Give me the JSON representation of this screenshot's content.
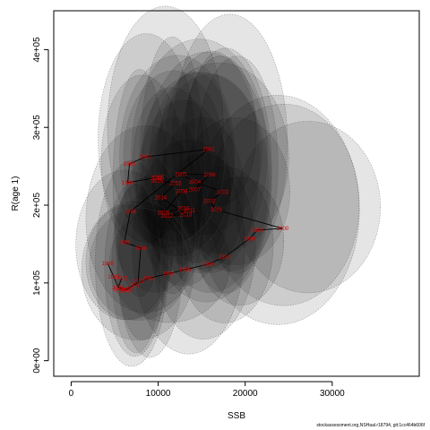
{
  "chart_data": {
    "type": "scatter",
    "title": "",
    "xlabel": "SSB",
    "ylabel": "R(age 1)",
    "xlim": [
      -2000,
      40000
    ],
    "ylim": [
      -20000,
      450000
    ],
    "x_ticks": [
      0,
      10000,
      20000,
      30000
    ],
    "x_tick_labels": [
      "0",
      "10000",
      "20000",
      "30000"
    ],
    "y_ticks": [
      0,
      100000,
      200000,
      300000,
      400000
    ],
    "y_tick_labels": [
      "0e+00",
      "1e+05",
      "2e+05",
      "3e+05",
      "4e+05"
    ],
    "grid": false,
    "points": [
      {
        "year": "1981",
        "ssb": 15800,
        "rec": 272000
      },
      {
        "year": "1982",
        "ssb": 8500,
        "rec": 262000
      },
      {
        "year": "1983",
        "ssb": 6700,
        "rec": 253000
      },
      {
        "year": "1984",
        "ssb": 6500,
        "rec": 229000
      },
      {
        "year": "1985",
        "ssb": 10000,
        "rec": 236000
      },
      {
        "year": "1986",
        "ssb": 6800,
        "rec": 192000
      },
      {
        "year": "1987",
        "ssb": 6100,
        "rec": 152000
      },
      {
        "year": "1988",
        "ssb": 4200,
        "rec": 125000
      },
      {
        "year": "1989",
        "ssb": 4900,
        "rec": 108000
      },
      {
        "year": "1990",
        "ssb": 5500,
        "rec": 92000
      },
      {
        "year": "1991",
        "ssb": 6100,
        "rec": 90000
      },
      {
        "year": "1992",
        "ssb": 7200,
        "rec": 97000
      },
      {
        "year": "1993",
        "ssb": 8900,
        "rec": 106000
      },
      {
        "year": "1994",
        "ssb": 11200,
        "rec": 112000
      },
      {
        "year": "1995",
        "ssb": 13100,
        "rec": 117000
      },
      {
        "year": "1996",
        "ssb": 15700,
        "rec": 124000
      },
      {
        "year": "1997",
        "ssb": 17600,
        "rec": 133000
      },
      {
        "year": "1998",
        "ssb": 20500,
        "rec": 157000
      },
      {
        "year": "1999",
        "ssb": 21400,
        "rec": 168000
      },
      {
        "year": "2000",
        "ssb": 24300,
        "rec": 170000
      },
      {
        "year": "2001",
        "ssb": 16700,
        "rec": 194000
      },
      {
        "year": "2002",
        "ssb": 15900,
        "rec": 205000
      },
      {
        "year": "2003",
        "ssb": 17400,
        "rec": 217000
      },
      {
        "year": "2004",
        "ssb": 14200,
        "rec": 230000
      },
      {
        "year": "2005",
        "ssb": 12600,
        "rec": 240000
      },
      {
        "year": "2006",
        "ssb": 15900,
        "rec": 239000
      },
      {
        "year": "2007",
        "ssb": 14200,
        "rec": 220000
      },
      {
        "year": "2008",
        "ssb": 12700,
        "rec": 218000
      },
      {
        "year": "2009",
        "ssb": 10600,
        "rec": 190000
      },
      {
        "year": "2010",
        "ssb": 12900,
        "rec": 196000
      },
      {
        "year": "2011",
        "ssb": 13600,
        "rec": 193000
      },
      {
        "year": "2012",
        "ssb": 11000,
        "rec": 186000
      },
      {
        "year": "2013",
        "ssb": 13200,
        "rec": 188000
      },
      {
        "year": "2014",
        "ssb": 10300,
        "rec": 210000
      },
      {
        "year": "2015",
        "ssb": 12000,
        "rec": 228000
      },
      {
        "year": "2016",
        "ssb": 9900,
        "rec": 231000
      },
      {
        "year": "2017",
        "ssb": 9800,
        "rec": 235000
      },
      {
        "year": "2018",
        "ssb": 8000,
        "rec": 145000
      },
      {
        "year": "2019",
        "ssb": 7700,
        "rec": 102000
      },
      {
        "year": "2020",
        "ssb": 6500,
        "rec": 92000
      },
      {
        "year": "2021",
        "ssb": 5400,
        "rec": 94000
      },
      {
        "year": "2022",
        "ssb": 5800,
        "rec": 106000
      }
    ],
    "path_order": [
      "1988",
      "1989",
      "1990",
      "1991",
      "1992",
      "1993",
      "1994",
      "1995",
      "1996",
      "1997",
      "1998",
      "1999",
      "2000",
      "2001",
      "2002",
      "2003",
      "2004",
      "2005",
      "2006",
      "2007",
      "2008",
      "2009",
      "2010",
      "2011",
      "2012",
      "2013",
      "2014",
      "2015",
      "2016",
      "2017",
      "1985",
      "1984",
      "1983",
      "1982",
      "1981",
      "1986",
      "1987",
      "2018",
      "2019",
      "2020",
      "2021",
      "2022"
    ],
    "point_color": "#e00000",
    "line_color": "#000000",
    "ellipse_fill": "#000000",
    "ellipse_opacity": 0.1
  },
  "footer": "stockassessment.org,NSHaal.r18794, git:1cc464b606f"
}
